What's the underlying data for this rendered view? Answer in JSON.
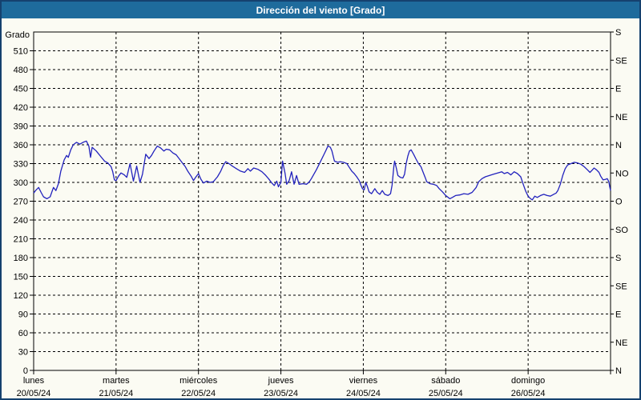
{
  "window": {
    "title": "Dirección del viento [Grado]"
  },
  "colors": {
    "titlebar_bg": "#1e6b9c",
    "titlebar_text": "#ffffff",
    "frame_border": "#15416e",
    "background": "#fbfbf3",
    "axis": "#000000",
    "grid": "#000000",
    "line": "#2222bd"
  },
  "chart_data": {
    "type": "line",
    "title": "Dirección del viento [Grado]",
    "ylabel_left": "Grado",
    "ylim": [
      0,
      540
    ],
    "xlim_days": [
      0,
      7
    ],
    "grid": "dashed",
    "legend": "none",
    "y_left_ticks": [
      0,
      30,
      60,
      90,
      120,
      150,
      180,
      210,
      240,
      270,
      300,
      330,
      360,
      390,
      420,
      450,
      480,
      510
    ],
    "y_right_ticks": [
      {
        "value": 0,
        "label": "N"
      },
      {
        "value": 45,
        "label": "NE"
      },
      {
        "value": 90,
        "label": "E"
      },
      {
        "value": 135,
        "label": "SE"
      },
      {
        "value": 180,
        "label": "S"
      },
      {
        "value": 225,
        "label": "SO"
      },
      {
        "value": 270,
        "label": "O"
      },
      {
        "value": 315,
        "label": "NO"
      },
      {
        "value": 360,
        "label": "N"
      },
      {
        "value": 405,
        "label": "NE"
      },
      {
        "value": 450,
        "label": "E"
      },
      {
        "value": 495,
        "label": "SE"
      },
      {
        "value": 540,
        "label": "S"
      }
    ],
    "x_days": [
      {
        "name": "lunes",
        "date": "20/05/24"
      },
      {
        "name": "martes",
        "date": "21/05/24"
      },
      {
        "name": "miércoles",
        "date": "22/05/24"
      },
      {
        "name": "jueves",
        "date": "23/05/24"
      },
      {
        "name": "viernes",
        "date": "24/05/24"
      },
      {
        "name": "sábado",
        "date": "25/05/24"
      },
      {
        "name": "domingo",
        "date": "26/05/24"
      }
    ],
    "series": [
      {
        "name": "Dirección del viento [Grado]",
        "color": "#2222bd",
        "points": [
          [
            0.0,
            283
          ],
          [
            0.03,
            288
          ],
          [
            0.06,
            292
          ],
          [
            0.09,
            284
          ],
          [
            0.12,
            277
          ],
          [
            0.16,
            274
          ],
          [
            0.2,
            277
          ],
          [
            0.24,
            292
          ],
          [
            0.27,
            287
          ],
          [
            0.3,
            298
          ],
          [
            0.33,
            318
          ],
          [
            0.37,
            336
          ],
          [
            0.4,
            343
          ],
          [
            0.42,
            340
          ],
          [
            0.45,
            352
          ],
          [
            0.48,
            360
          ],
          [
            0.52,
            364
          ],
          [
            0.56,
            361
          ],
          [
            0.6,
            364
          ],
          [
            0.64,
            366
          ],
          [
            0.67,
            358
          ],
          [
            0.69,
            340
          ],
          [
            0.71,
            356
          ],
          [
            0.76,
            350
          ],
          [
            0.81,
            342
          ],
          [
            0.86,
            334
          ],
          [
            0.9,
            331
          ],
          [
            0.94,
            325
          ],
          [
            0.96,
            317
          ],
          [
            0.98,
            304
          ],
          [
            1.0,
            303
          ],
          [
            1.03,
            310
          ],
          [
            1.06,
            315
          ],
          [
            1.1,
            312
          ],
          [
            1.13,
            308
          ],
          [
            1.17,
            330
          ],
          [
            1.21,
            302
          ],
          [
            1.25,
            326
          ],
          [
            1.29,
            300
          ],
          [
            1.32,
            313
          ],
          [
            1.36,
            345
          ],
          [
            1.4,
            338
          ],
          [
            1.43,
            343
          ],
          [
            1.46,
            350
          ],
          [
            1.5,
            358
          ],
          [
            1.54,
            355
          ],
          [
            1.58,
            350
          ],
          [
            1.61,
            353
          ],
          [
            1.65,
            352
          ],
          [
            1.69,
            347
          ],
          [
            1.73,
            344
          ],
          [
            1.77,
            337
          ],
          [
            1.81,
            330
          ],
          [
            1.84,
            325
          ],
          [
            1.87,
            318
          ],
          [
            1.91,
            310
          ],
          [
            1.94,
            303
          ],
          [
            1.97,
            309
          ],
          [
            2.0,
            314
          ],
          [
            2.03,
            305
          ],
          [
            2.06,
            299
          ],
          [
            2.1,
            302
          ],
          [
            2.14,
            300
          ],
          [
            2.18,
            301
          ],
          [
            2.23,
            309
          ],
          [
            2.27,
            318
          ],
          [
            2.3,
            327
          ],
          [
            2.33,
            333
          ],
          [
            2.37,
            330
          ],
          [
            2.41,
            326
          ],
          [
            2.46,
            322
          ],
          [
            2.51,
            318
          ],
          [
            2.56,
            316
          ],
          [
            2.6,
            322
          ],
          [
            2.63,
            318
          ],
          [
            2.67,
            323
          ],
          [
            2.72,
            321
          ],
          [
            2.77,
            317
          ],
          [
            2.81,
            312
          ],
          [
            2.85,
            306
          ],
          [
            2.89,
            299
          ],
          [
            2.92,
            295
          ],
          [
            2.95,
            302
          ],
          [
            2.97,
            293
          ],
          [
            3.0,
            300
          ],
          [
            3.02,
            334
          ],
          [
            3.05,
            315
          ],
          [
            3.07,
            297
          ],
          [
            3.1,
            303
          ],
          [
            3.13,
            317
          ],
          [
            3.16,
            297
          ],
          [
            3.19,
            311
          ],
          [
            3.22,
            297
          ],
          [
            3.27,
            298
          ],
          [
            3.31,
            297
          ],
          [
            3.34,
            300
          ],
          [
            3.37,
            306
          ],
          [
            3.4,
            313
          ],
          [
            3.43,
            320
          ],
          [
            3.46,
            328
          ],
          [
            3.49,
            336
          ],
          [
            3.52,
            344
          ],
          [
            3.55,
            352
          ],
          [
            3.57,
            358
          ],
          [
            3.6,
            356
          ],
          [
            3.62,
            350
          ],
          [
            3.65,
            334
          ],
          [
            3.69,
            332
          ],
          [
            3.72,
            333
          ],
          [
            3.76,
            332
          ],
          [
            3.8,
            330
          ],
          [
            3.83,
            324
          ],
          [
            3.86,
            318
          ],
          [
            3.89,
            314
          ],
          [
            3.92,
            309
          ],
          [
            3.95,
            303
          ],
          [
            3.97,
            296
          ],
          [
            3.99,
            290
          ],
          [
            4.01,
            288
          ],
          [
            4.03,
            300
          ],
          [
            4.05,
            293
          ],
          [
            4.07,
            285
          ],
          [
            4.1,
            282
          ],
          [
            4.14,
            290
          ],
          [
            4.17,
            284
          ],
          [
            4.2,
            281
          ],
          [
            4.23,
            287
          ],
          [
            4.26,
            281
          ],
          [
            4.3,
            279
          ],
          [
            4.33,
            282
          ],
          [
            4.35,
            296
          ],
          [
            4.37,
            325
          ],
          [
            4.38,
            334
          ],
          [
            4.4,
            323
          ],
          [
            4.42,
            311
          ],
          [
            4.45,
            308
          ],
          [
            4.48,
            307
          ],
          [
            4.5,
            313
          ],
          [
            4.52,
            330
          ],
          [
            4.54,
            342
          ],
          [
            4.56,
            350
          ],
          [
            4.58,
            352
          ],
          [
            4.61,
            345
          ],
          [
            4.64,
            337
          ],
          [
            4.67,
            330
          ],
          [
            4.7,
            325
          ],
          [
            4.72,
            318
          ],
          [
            4.75,
            308
          ],
          [
            4.77,
            301
          ],
          [
            4.81,
            298
          ],
          [
            4.85,
            297
          ],
          [
            4.89,
            295
          ],
          [
            4.92,
            290
          ],
          [
            4.96,
            285
          ],
          [
            5.0,
            279
          ],
          [
            5.03,
            276
          ],
          [
            5.05,
            274
          ],
          [
            5.08,
            276
          ],
          [
            5.12,
            279
          ],
          [
            5.17,
            280
          ],
          [
            5.22,
            282
          ],
          [
            5.27,
            281
          ],
          [
            5.32,
            284
          ],
          [
            5.37,
            292
          ],
          [
            5.4,
            301
          ],
          [
            5.44,
            306
          ],
          [
            5.48,
            309
          ],
          [
            5.53,
            311
          ],
          [
            5.58,
            313
          ],
          [
            5.63,
            315
          ],
          [
            5.68,
            317
          ],
          [
            5.71,
            314
          ],
          [
            5.75,
            316
          ],
          [
            5.79,
            312
          ],
          [
            5.83,
            317
          ],
          [
            5.87,
            314
          ],
          [
            5.91,
            309
          ],
          [
            5.94,
            297
          ],
          [
            5.97,
            286
          ],
          [
            6.0,
            278
          ],
          [
            6.03,
            274
          ],
          [
            6.05,
            272
          ],
          [
            6.08,
            278
          ],
          [
            6.11,
            276
          ],
          [
            6.15,
            279
          ],
          [
            6.19,
            281
          ],
          [
            6.23,
            279
          ],
          [
            6.27,
            278
          ],
          [
            6.31,
            281
          ],
          [
            6.34,
            283
          ],
          [
            6.36,
            287
          ],
          [
            6.39,
            297
          ],
          [
            6.42,
            311
          ],
          [
            6.45,
            322
          ],
          [
            6.48,
            328
          ],
          [
            6.52,
            330
          ],
          [
            6.56,
            332
          ],
          [
            6.6,
            331
          ],
          [
            6.64,
            329
          ],
          [
            6.68,
            325
          ],
          [
            6.72,
            320
          ],
          [
            6.75,
            316
          ],
          [
            6.78,
            320
          ],
          [
            6.8,
            323
          ],
          [
            6.83,
            320
          ],
          [
            6.86,
            316
          ],
          [
            6.88,
            310
          ],
          [
            6.91,
            304
          ],
          [
            6.94,
            305
          ],
          [
            6.96,
            306
          ],
          [
            6.98,
            301
          ],
          [
            6.99,
            293
          ],
          [
            7.0,
            287
          ]
        ]
      }
    ]
  }
}
